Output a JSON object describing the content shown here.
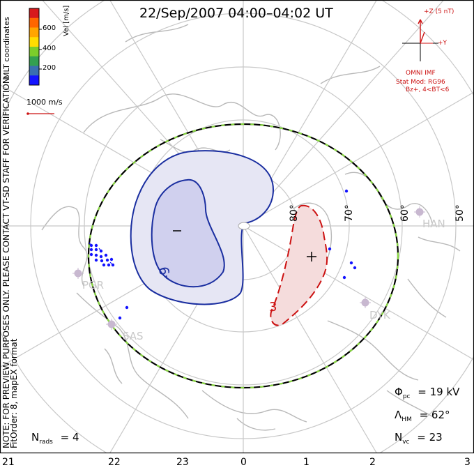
{
  "title": "22/Sep/2007 04:00–04:02 UT",
  "colorbar": {
    "label": "Vel [m/s]",
    "ticks": [
      "600",
      "400",
      "200"
    ],
    "colors": [
      "#d7191c",
      "#ff6600",
      "#ffa500",
      "#ffdd00",
      "#7ccd2a",
      "#33a050",
      "#3a6fb0",
      "#1414ff"
    ]
  },
  "vector_scale_label": "1000 m/s",
  "side_note": "NOTE: FOR PREVIEW PURPOSES ONLY. PLEASE CONTACT VT-SD STAFF FOR VERIFICATION.",
  "mlt_label": "MLT coordinates",
  "fit_label": "FitOrder: 8, mapEX format",
  "imf": {
    "z_label": "+Z (5 nT)",
    "y_label": "+Y",
    "source": "OMNI IMF",
    "stat_mod": "Stat Mod: RG96",
    "condition": "Bz+, 4<BT<6"
  },
  "latitude_labels": [
    "80°",
    "70°",
    "60°",
    "50°"
  ],
  "mlt_ticks": [
    "21",
    "22",
    "23",
    "0",
    "1",
    "2",
    "3"
  ],
  "stations": [
    "PGR",
    "SAS",
    "HAN",
    "DYK"
  ],
  "contours": {
    "negative_value": "-9",
    "negative_sign": "−",
    "positive_value": "3",
    "positive_sign": "+"
  },
  "stats": {
    "phi_label": "Φ",
    "phi_sub": "pc",
    "phi_value": "= 19 kV",
    "lambda_label": "Λ",
    "lambda_sub": "HM",
    "lambda_value": "= 62°",
    "nvc_label": "N",
    "nvc_sub": "vc",
    "nvc_value": "= 23",
    "nrads_label": "N",
    "nrads_sub": "rads",
    "nrads_value": "= 4"
  }
}
